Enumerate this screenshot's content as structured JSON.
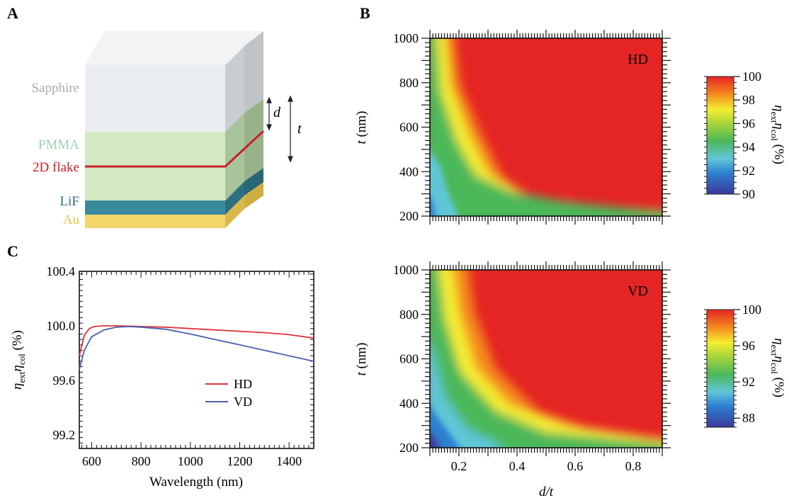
{
  "panels": {
    "a": "A",
    "b": "B",
    "c": "C"
  },
  "stack": {
    "layers": {
      "sapphire": "Sapphire",
      "pmma": "PMMA",
      "flake": "2D flake",
      "lif": "LiF",
      "au": "Au"
    },
    "d_label": "d",
    "t_label": "t",
    "colors": {
      "sapphire": "#eaeef2",
      "pmma": "#d4e8c4",
      "flake": "#c8202a",
      "lif": "#3a8a9e",
      "au": "#f2d66a"
    }
  },
  "chart_data": [
    {
      "type": "line",
      "title": "",
      "xlabel": "Wavelength (nm)",
      "ylabel": "η_ext η_col (%)",
      "xlim": [
        550,
        1500
      ],
      "ylim": [
        99.1,
        100.4
      ],
      "xticks": [
        "600",
        "800",
        "1000",
        "1200",
        "1400"
      ],
      "yticks": [
        "99.2",
        "99.6",
        "100.0",
        "100.4"
      ],
      "legend_position": "bottom-right",
      "series": [
        {
          "name": "HD",
          "color": "#e0333a",
          "x": [
            550,
            570,
            590,
            610,
            650,
            700,
            800,
            900,
            1000,
            1100,
            1200,
            1300,
            1400,
            1500
          ],
          "y": [
            99.78,
            99.93,
            99.98,
            99.995,
            100.0,
            100.0,
            99.995,
            99.99,
            99.98,
            99.97,
            99.96,
            99.95,
            99.935,
            99.91
          ]
        },
        {
          "name": "VD",
          "color": "#4a5fb0",
          "x": [
            550,
            570,
            600,
            650,
            700,
            750,
            800,
            900,
            1000,
            1100,
            1200,
            1300,
            1400,
            1500
          ],
          "y": [
            99.68,
            99.82,
            99.92,
            99.97,
            99.99,
            99.995,
            99.99,
            99.975,
            99.94,
            99.9,
            99.86,
            99.82,
            99.78,
            99.74
          ]
        }
      ]
    },
    {
      "type": "heatmap",
      "annotation": "HD",
      "xlabel": "d/t",
      "ylabel": "t (nm)",
      "xlim": [
        0.1,
        0.9
      ],
      "ylim": [
        200,
        1000
      ],
      "yticks": [
        "200",
        "400",
        "600",
        "800",
        "1000"
      ],
      "colorbar": {
        "label": "η_ext η_col (%)",
        "range": [
          90,
          100
        ],
        "ticks": [
          "90",
          "92",
          "94",
          "96",
          "98",
          "100"
        ]
      }
    },
    {
      "type": "heatmap",
      "annotation": "VD",
      "xlabel": "d/t",
      "ylabel": "t (nm)",
      "xlim": [
        0.1,
        0.9
      ],
      "ylim": [
        200,
        1000
      ],
      "xticks": [
        "0.2",
        "0.4",
        "0.6",
        "0.8"
      ],
      "yticks": [
        "200",
        "400",
        "600",
        "800",
        "1000"
      ],
      "colorbar": {
        "label": "η_ext η_col (%)",
        "range": [
          87,
          100
        ],
        "ticks": [
          "88",
          "92",
          "96",
          "100"
        ]
      }
    }
  ]
}
